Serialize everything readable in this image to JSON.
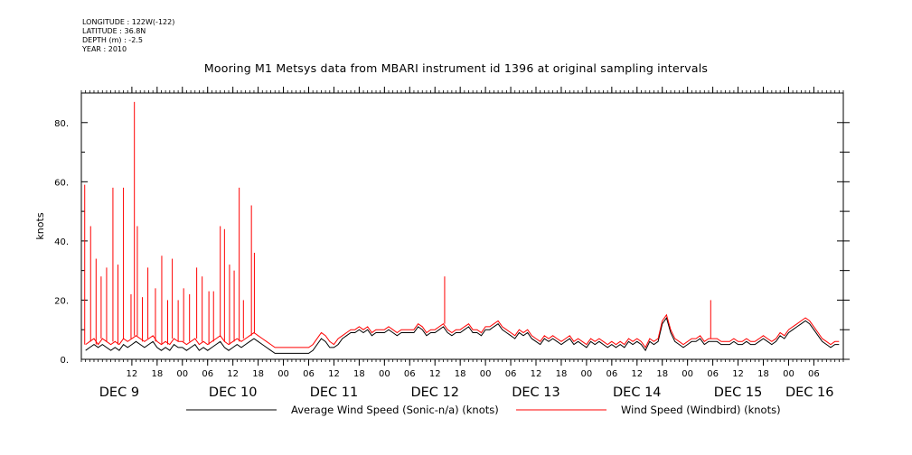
{
  "header": {
    "longitude": "LONGITUDE : 122W(-122)",
    "latitude": "LATITUDE : 36.8N",
    "depth": "DEPTH (m) : -2.5",
    "year": "YEAR : 2010"
  },
  "chart_data": {
    "type": "line",
    "title": "Mooring M1 Metsys data from MBARI instrument id 1396 at original sampling intervals",
    "xlabel": "",
    "ylabel": "knots",
    "xlim_hours": [
      0,
      181
    ],
    "xlim_note": "hours after DEC 9 00:00, 2010",
    "ylim": [
      0,
      90
    ],
    "y_ticks": [
      0,
      20,
      40,
      60,
      80
    ],
    "y_tick_labels": [
      "0.",
      "20.",
      "40.",
      "60.",
      "80."
    ],
    "x_ticks_hours": [
      12,
      18,
      24,
      30,
      36,
      42,
      48,
      54,
      60,
      66,
      72,
      78,
      84,
      90,
      96,
      102,
      108,
      114,
      120,
      126,
      132,
      138,
      144,
      150,
      156,
      162,
      168,
      174
    ],
    "x_tick_labels": [
      "12",
      "18",
      "00",
      "06",
      "12",
      "18",
      "00",
      "06",
      "12",
      "18",
      "00",
      "06",
      "12",
      "18",
      "00",
      "06",
      "12",
      "18",
      "00",
      "06",
      "12",
      "18",
      "00",
      "06",
      "12",
      "18",
      "00",
      "06"
    ],
    "day_labels": [
      {
        "hour": 9,
        "label": "DEC  9"
      },
      {
        "hour": 36,
        "label": "DEC 10"
      },
      {
        "hour": 60,
        "label": "DEC 11"
      },
      {
        "hour": 84,
        "label": "DEC 12"
      },
      {
        "hour": 108,
        "label": "DEC 13"
      },
      {
        "hour": 132,
        "label": "DEC 14"
      },
      {
        "hour": 156,
        "label": "DEC 15"
      },
      {
        "hour": 173,
        "label": "DEC 16"
      }
    ],
    "grid": false,
    "legend_position": "bottom",
    "series": [
      {
        "name": "Average Wind Speed (Sonic-n/a) (knots)",
        "color": "#000000",
        "x": [
          1,
          2,
          3,
          4,
          5,
          6,
          7,
          8,
          9,
          10,
          11,
          12,
          13,
          14,
          15,
          16,
          17,
          18,
          19,
          20,
          21,
          22,
          23,
          24,
          25,
          26,
          27,
          28,
          29,
          30,
          31,
          32,
          33,
          34,
          35,
          36,
          37,
          38,
          39,
          40,
          41,
          42,
          43,
          44,
          45,
          46,
          47,
          48,
          49,
          50,
          51,
          52,
          53,
          54,
          55,
          56,
          57,
          58,
          59,
          60,
          61,
          62,
          63,
          64,
          65,
          66,
          67,
          68,
          69,
          70,
          71,
          72,
          73,
          74,
          75,
          76,
          77,
          78,
          79,
          80,
          81,
          82,
          83,
          84,
          85,
          86,
          87,
          88,
          89,
          90,
          91,
          92,
          93,
          94,
          95,
          96,
          97,
          98,
          99,
          100,
          101,
          102,
          103,
          104,
          105,
          106,
          107,
          108,
          109,
          110,
          111,
          112,
          113,
          114,
          115,
          116,
          117,
          118,
          119,
          120,
          121,
          122,
          123,
          124,
          125,
          126,
          127,
          128,
          129,
          130,
          131,
          132,
          133,
          134,
          135,
          136,
          137,
          138,
          139,
          140,
          141,
          142,
          143,
          144,
          145,
          146,
          147,
          148,
          149,
          150,
          151,
          152,
          153,
          154,
          155,
          156,
          157,
          158,
          159,
          160,
          161,
          162,
          163,
          164,
          165,
          166,
          167,
          168,
          169,
          170,
          171,
          172,
          173,
          174,
          175,
          176,
          177,
          178,
          179,
          180
        ],
        "y": [
          3,
          4,
          5,
          4,
          5,
          4,
          3,
          4,
          3,
          5,
          4,
          5,
          6,
          5,
          4,
          5,
          6,
          4,
          3,
          4,
          3,
          5,
          4,
          4,
          3,
          4,
          5,
          3,
          4,
          3,
          4,
          5,
          6,
          4,
          3,
          4,
          5,
          4,
          5,
          6,
          7,
          6,
          5,
          4,
          3,
          2,
          2,
          2,
          2,
          2,
          2,
          2,
          2,
          2,
          3,
          5,
          7,
          6,
          4,
          4,
          5,
          7,
          8,
          9,
          9,
          10,
          9,
          10,
          8,
          9,
          9,
          9,
          10,
          9,
          8,
          9,
          9,
          9,
          9,
          11,
          10,
          8,
          9,
          9,
          10,
          11,
          9,
          8,
          9,
          9,
          10,
          11,
          9,
          9,
          8,
          10,
          10,
          11,
          12,
          10,
          9,
          8,
          7,
          9,
          8,
          9,
          7,
          6,
          5,
          7,
          6,
          7,
          6,
          5,
          6,
          7,
          5,
          6,
          5,
          4,
          6,
          5,
          6,
          5,
          4,
          5,
          4,
          5,
          4,
          6,
          5,
          6,
          5,
          3,
          6,
          5,
          6,
          12,
          14,
          9,
          6,
          5,
          4,
          5,
          6,
          6,
          7,
          5,
          6,
          6,
          6,
          5,
          5,
          5,
          6,
          5,
          5,
          6,
          5,
          5,
          6,
          7,
          6,
          5,
          6,
          8,
          7,
          9,
          10,
          11,
          12,
          13,
          12,
          10,
          8,
          6,
          5,
          4,
          5,
          5
        ]
      },
      {
        "name": "Wind Speed (Windbird) (knots)",
        "color": "#ff0000",
        "x": [
          1,
          2,
          3,
          4,
          5,
          6,
          7,
          8,
          9,
          10,
          11,
          12,
          13,
          14,
          15,
          16,
          17,
          18,
          19,
          20,
          21,
          22,
          23,
          24,
          25,
          26,
          27,
          28,
          29,
          30,
          31,
          32,
          33,
          34,
          35,
          36,
          37,
          38,
          39,
          40,
          41,
          42,
          43,
          44,
          45,
          46,
          47,
          48,
          49,
          50,
          51,
          52,
          53,
          54,
          55,
          56,
          57,
          58,
          59,
          60,
          61,
          62,
          63,
          64,
          65,
          66,
          67,
          68,
          69,
          70,
          71,
          72,
          73,
          74,
          75,
          76,
          77,
          78,
          79,
          80,
          81,
          82,
          83,
          84,
          85,
          86,
          87,
          88,
          89,
          90,
          91,
          92,
          93,
          94,
          95,
          96,
          97,
          98,
          99,
          100,
          101,
          102,
          103,
          104,
          105,
          106,
          107,
          108,
          109,
          110,
          111,
          112,
          113,
          114,
          115,
          116,
          117,
          118,
          119,
          120,
          121,
          122,
          123,
          124,
          125,
          126,
          127,
          128,
          129,
          130,
          131,
          132,
          133,
          134,
          135,
          136,
          137,
          138,
          139,
          140,
          141,
          142,
          143,
          144,
          145,
          146,
          147,
          148,
          149,
          150,
          151,
          152,
          153,
          154,
          155,
          156,
          157,
          158,
          159,
          160,
          161,
          162,
          163,
          164,
          165,
          166,
          167,
          168,
          169,
          170,
          171,
          172,
          173,
          174,
          175,
          176,
          177,
          178,
          179,
          180
        ],
        "y": [
          5,
          6,
          7,
          5,
          7,
          6,
          5,
          6,
          5,
          7,
          6,
          7,
          8,
          7,
          6,
          7,
          8,
          6,
          5,
          6,
          5,
          7,
          6,
          6,
          5,
          6,
          7,
          5,
          6,
          5,
          6,
          7,
          8,
          6,
          5,
          6,
          7,
          6,
          7,
          8,
          9,
          8,
          7,
          6,
          5,
          4,
          4,
          4,
          4,
          4,
          4,
          4,
          4,
          4,
          5,
          7,
          9,
          8,
          6,
          5,
          7,
          8,
          9,
          10,
          10,
          11,
          10,
          11,
          9,
          10,
          10,
          10,
          11,
          10,
          9,
          10,
          10,
          10,
          10,
          12,
          11,
          9,
          10,
          10,
          11,
          12,
          10,
          9,
          10,
          10,
          11,
          12,
          10,
          10,
          9,
          11,
          11,
          12,
          13,
          11,
          10,
          9,
          8,
          10,
          9,
          10,
          8,
          7,
          6,
          8,
          7,
          8,
          7,
          6,
          7,
          8,
          6,
          7,
          6,
          5,
          7,
          6,
          7,
          6,
          5,
          6,
          5,
          6,
          5,
          7,
          6,
          7,
          6,
          4,
          7,
          6,
          7,
          13,
          15,
          10,
          7,
          6,
          5,
          6,
          7,
          7,
          8,
          6,
          7,
          7,
          7,
          6,
          6,
          6,
          7,
          6,
          6,
          7,
          6,
          6,
          7,
          8,
          7,
          6,
          7,
          9,
          8,
          10,
          11,
          12,
          13,
          14,
          13,
          11,
          9,
          7,
          6,
          5,
          6,
          6
        ],
        "spikes": [
          {
            "x": 0.8,
            "y": 59
          },
          {
            "x": 2.2,
            "y": 45
          },
          {
            "x": 3.5,
            "y": 34
          },
          {
            "x": 4.7,
            "y": 28
          },
          {
            "x": 6.0,
            "y": 31
          },
          {
            "x": 7.5,
            "y": 58
          },
          {
            "x": 8.7,
            "y": 32
          },
          {
            "x": 10.0,
            "y": 58
          },
          {
            "x": 11.8,
            "y": 22
          },
          {
            "x": 12.6,
            "y": 87
          },
          {
            "x": 13.3,
            "y": 45
          },
          {
            "x": 14.5,
            "y": 21
          },
          {
            "x": 15.8,
            "y": 31
          },
          {
            "x": 17.6,
            "y": 24
          },
          {
            "x": 19.1,
            "y": 35
          },
          {
            "x": 20.5,
            "y": 20
          },
          {
            "x": 21.6,
            "y": 34
          },
          {
            "x": 23.0,
            "y": 20
          },
          {
            "x": 24.3,
            "y": 24
          },
          {
            "x": 25.7,
            "y": 22
          },
          {
            "x": 27.4,
            "y": 31
          },
          {
            "x": 28.7,
            "y": 28
          },
          {
            "x": 30.3,
            "y": 23
          },
          {
            "x": 31.4,
            "y": 23
          },
          {
            "x": 33.0,
            "y": 45
          },
          {
            "x": 34.0,
            "y": 44
          },
          {
            "x": 35.2,
            "y": 32
          },
          {
            "x": 36.3,
            "y": 30
          },
          {
            "x": 37.5,
            "y": 58
          },
          {
            "x": 38.5,
            "y": 20
          },
          {
            "x": 40.4,
            "y": 52
          },
          {
            "x": 41.1,
            "y": 36
          },
          {
            "x": 86.3,
            "y": 28
          },
          {
            "x": 149.5,
            "y": 20
          }
        ]
      }
    ]
  },
  "legend": {
    "black_label": "Average Wind Speed (Sonic-n/a) (knots)",
    "red_label": "Wind Speed (Windbird) (knots)"
  }
}
